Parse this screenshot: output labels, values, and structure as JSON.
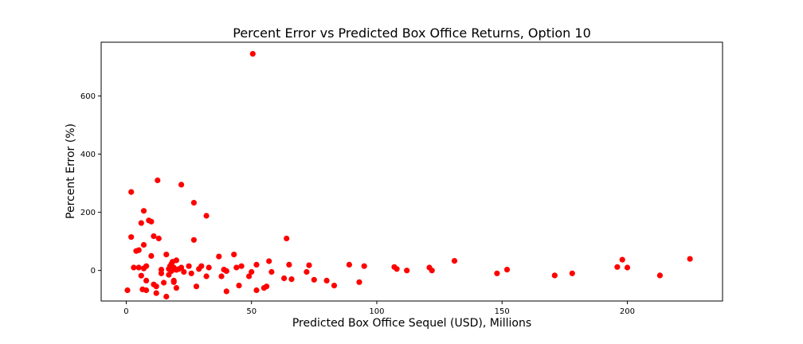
{
  "chart_data": {
    "type": "scatter",
    "title": "Percent Error vs Predicted Box Office Returns, Option 10",
    "xlabel": "Predicted Box Office Sequel (USD), Millions",
    "ylabel": "Percent Error (%)",
    "xlim": [
      -10,
      238
    ],
    "ylim": [
      -105,
      785
    ],
    "xticks": [
      0,
      50,
      100,
      150,
      200
    ],
    "yticks": [
      0,
      200,
      400,
      600
    ],
    "grid": false,
    "color": "#ff0000",
    "points": [
      [
        0.5,
        -68
      ],
      [
        2,
        270
      ],
      [
        2,
        115
      ],
      [
        3,
        10
      ],
      [
        4,
        67
      ],
      [
        5,
        70
      ],
      [
        5,
        10
      ],
      [
        6,
        -18
      ],
      [
        6,
        163
      ],
      [
        6.5,
        -65
      ],
      [
        7,
        88
      ],
      [
        7,
        205
      ],
      [
        7,
        7
      ],
      [
        8,
        -68
      ],
      [
        8,
        -35
      ],
      [
        8,
        15
      ],
      [
        9,
        172
      ],
      [
        10,
        168
      ],
      [
        10,
        50
      ],
      [
        11,
        118
      ],
      [
        11,
        -48
      ],
      [
        12,
        -78
      ],
      [
        12,
        -55
      ],
      [
        12.5,
        310
      ],
      [
        13,
        110
      ],
      [
        14,
        -10
      ],
      [
        14,
        3
      ],
      [
        15,
        -42
      ],
      [
        16,
        55
      ],
      [
        16,
        -90
      ],
      [
        17,
        5
      ],
      [
        17,
        -15
      ],
      [
        17.5,
        15
      ],
      [
        18,
        -2
      ],
      [
        18,
        22
      ],
      [
        18.5,
        30
      ],
      [
        19,
        -35
      ],
      [
        19,
        10
      ],
      [
        19,
        -40
      ],
      [
        20,
        -60
      ],
      [
        20,
        35
      ],
      [
        20,
        2
      ],
      [
        21,
        5
      ],
      [
        22,
        295
      ],
      [
        22,
        10
      ],
      [
        23,
        -5
      ],
      [
        25,
        15
      ],
      [
        26,
        -10
      ],
      [
        27,
        233
      ],
      [
        27,
        105
      ],
      [
        28,
        -55
      ],
      [
        29,
        5
      ],
      [
        30,
        15
      ],
      [
        32,
        188
      ],
      [
        32,
        -20
      ],
      [
        33,
        10
      ],
      [
        37,
        48
      ],
      [
        38,
        -20
      ],
      [
        39,
        3
      ],
      [
        40,
        -72
      ],
      [
        40,
        -2
      ],
      [
        43,
        55
      ],
      [
        44,
        10
      ],
      [
        45,
        -52
      ],
      [
        46,
        15
      ],
      [
        49,
        -20
      ],
      [
        50,
        -5
      ],
      [
        50.5,
        745
      ],
      [
        52,
        -68
      ],
      [
        52,
        20
      ],
      [
        55,
        -60
      ],
      [
        56,
        -55
      ],
      [
        57,
        32
      ],
      [
        58,
        -5
      ],
      [
        63,
        -27
      ],
      [
        64,
        110
      ],
      [
        65,
        20
      ],
      [
        66,
        -30
      ],
      [
        72,
        -5
      ],
      [
        73,
        18
      ],
      [
        75,
        -32
      ],
      [
        80,
        -35
      ],
      [
        83,
        -52
      ],
      [
        89,
        20
      ],
      [
        93,
        -40
      ],
      [
        95,
        15
      ],
      [
        107,
        12
      ],
      [
        108,
        5
      ],
      [
        112,
        0
      ],
      [
        121,
        10
      ],
      [
        122,
        0
      ],
      [
        131,
        33
      ],
      [
        148,
        -10
      ],
      [
        152,
        3
      ],
      [
        171,
        -17
      ],
      [
        178,
        -10
      ],
      [
        196,
        12
      ],
      [
        198,
        37
      ],
      [
        200,
        10
      ],
      [
        213,
        -17
      ],
      [
        225,
        40
      ]
    ]
  }
}
